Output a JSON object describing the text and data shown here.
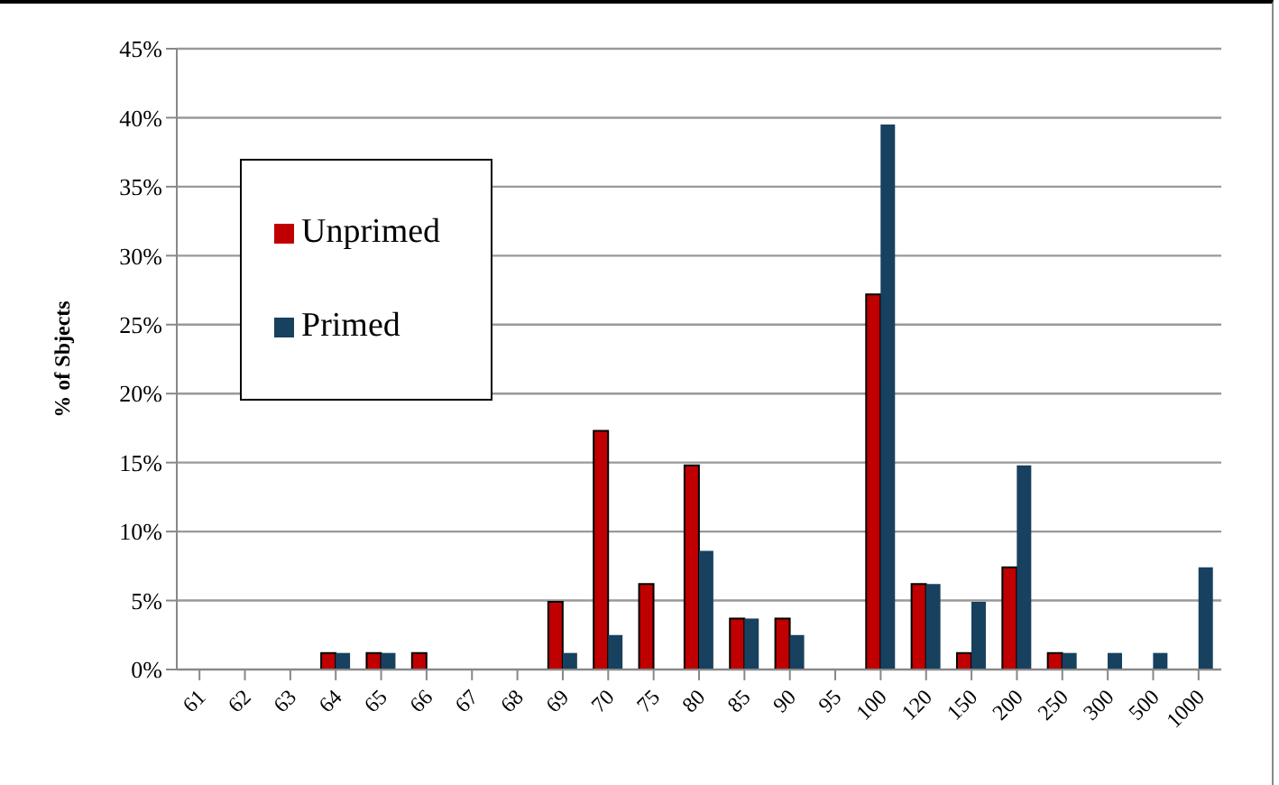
{
  "chart_data": {
    "type": "bar",
    "ylabel": "% of Sbjects",
    "categories": [
      "61",
      "62",
      "63",
      "64",
      "65",
      "66",
      "67",
      "68",
      "69",
      "70",
      "75",
      "80",
      "85",
      "90",
      "95",
      "100",
      "120",
      "150",
      "200",
      "250",
      "300",
      "500",
      "1000"
    ],
    "series": [
      {
        "name": "Unprimed",
        "color": "#c00000",
        "values": [
          0,
          0,
          0,
          1.2,
          1.2,
          1.2,
          0,
          0,
          4.9,
          17.3,
          6.2,
          14.8,
          3.7,
          3.7,
          0,
          27.2,
          6.2,
          1.2,
          7.4,
          1.2,
          0,
          0,
          0
        ]
      },
      {
        "name": "Primed",
        "color": "#17415f",
        "values": [
          0,
          0,
          0,
          1.2,
          1.2,
          0,
          0,
          0,
          1.2,
          2.5,
          0,
          8.6,
          3.7,
          2.5,
          0,
          39.5,
          6.2,
          4.9,
          14.8,
          1.2,
          1.2,
          1.2,
          7.4
        ]
      }
    ],
    "ylim": [
      0,
      45
    ],
    "yticks": [
      {
        "value": 0,
        "label": "0%"
      },
      {
        "value": 5,
        "label": "5%"
      },
      {
        "value": 10,
        "label": "10%"
      },
      {
        "value": 15,
        "label": "15%"
      },
      {
        "value": 20,
        "label": "20%"
      },
      {
        "value": 25,
        "label": "25%"
      },
      {
        "value": 30,
        "label": "30%"
      },
      {
        "value": 35,
        "label": "35%"
      },
      {
        "value": 40,
        "label": "40%"
      },
      {
        "value": 45,
        "label": "45%"
      }
    ],
    "grid": "y",
    "legend": "top left"
  }
}
